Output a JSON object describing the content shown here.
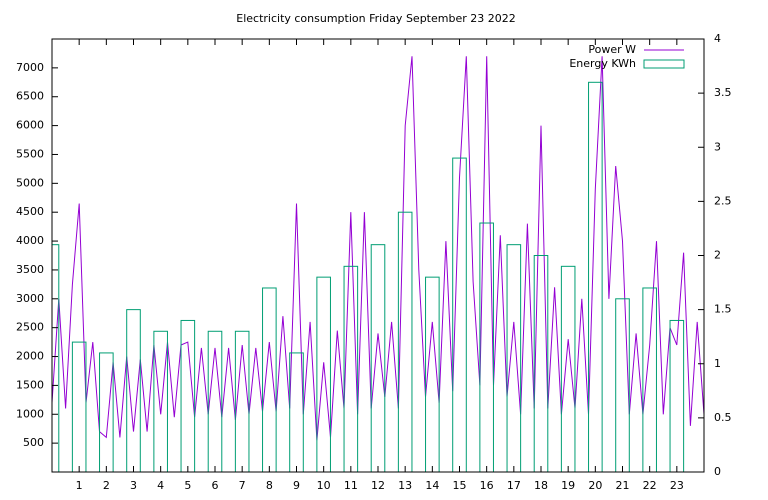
{
  "chart_data": {
    "type": "line",
    "title": "Electricity consumption Friday September 23 2022",
    "xlim": [
      0,
      24
    ],
    "xticks": [
      1,
      2,
      3,
      4,
      5,
      6,
      7,
      8,
      9,
      10,
      11,
      12,
      13,
      14,
      15,
      16,
      17,
      18,
      19,
      20,
      21,
      22,
      23
    ],
    "ylim": [
      0,
      7500
    ],
    "yticks": [
      500,
      1000,
      1500,
      2000,
      2500,
      3000,
      3500,
      4000,
      4500,
      5000,
      5500,
      6000,
      6500,
      7000
    ],
    "y2lim": [
      0,
      4
    ],
    "y2ticks": [
      0,
      0.5,
      1,
      1.5,
      2,
      2.5,
      3,
      3.5,
      4
    ],
    "legend": "top right",
    "series": [
      {
        "name": "Power W",
        "color": "#9400d3",
        "style": "line",
        "x": [
          0,
          0.25,
          0.5,
          0.75,
          1,
          1.25,
          1.5,
          1.75,
          2,
          2.25,
          2.5,
          2.75,
          3,
          3.25,
          3.5,
          3.75,
          4,
          4.25,
          4.5,
          4.75,
          5,
          5.25,
          5.5,
          5.75,
          6,
          6.25,
          6.5,
          6.75,
          7,
          7.25,
          7.5,
          7.75,
          8,
          8.25,
          8.5,
          8.75,
          9,
          9.25,
          9.5,
          9.75,
          10,
          10.25,
          10.5,
          10.75,
          11,
          11.25,
          11.5,
          11.75,
          12,
          12.25,
          12.5,
          12.75,
          13,
          13.25,
          13.5,
          13.75,
          14,
          14.25,
          14.5,
          14.75,
          15,
          15.25,
          15.5,
          15.75,
          16,
          16.25,
          16.5,
          16.75,
          17,
          17.25,
          17.5,
          17.75,
          18,
          18.25,
          18.5,
          18.75,
          19,
          19.25,
          19.5,
          19.75,
          20,
          20.25,
          20.5,
          20.75,
          21,
          21.25,
          21.5,
          21.75,
          22,
          22.25,
          22.5,
          22.75,
          23,
          23.25,
          23.5,
          23.75,
          24
        ],
        "values": [
          1200,
          3000,
          1100,
          3250,
          4650,
          1200,
          2250,
          700,
          600,
          1900,
          600,
          2000,
          700,
          1950,
          700,
          2200,
          1000,
          2250,
          950,
          2200,
          2250,
          950,
          2150,
          1000,
          2150,
          950,
          2150,
          900,
          2200,
          1000,
          2150,
          1050,
          2250,
          1050,
          2700,
          1100,
          4650,
          1000,
          2600,
          550,
          1900,
          600,
          2450,
          1100,
          4500,
          1000,
          4500,
          1100,
          2400,
          1300,
          2600,
          1100,
          6000,
          7200,
          3500,
          1300,
          2600,
          1200,
          4000,
          1400,
          5100,
          7200,
          3300,
          1500,
          7200,
          1500,
          4100,
          1300,
          2600,
          1000,
          4300,
          1100,
          6000,
          1100,
          3200,
          1000,
          2300,
          1100,
          3000,
          1000,
          4900,
          7200,
          3000,
          5300,
          4000,
          1000,
          2400,
          1000,
          2200,
          4000,
          1000,
          2500,
          2200,
          3800,
          800,
          2600,
          1000
        ]
      },
      {
        "name": "Energy KWh",
        "color": "#009e73",
        "style": "boxes",
        "axis": "y2",
        "x": [
          0,
          1,
          2,
          3,
          4,
          5,
          6,
          7,
          8,
          9,
          10,
          11,
          12,
          13,
          14,
          15,
          16,
          17,
          18,
          19,
          20,
          21,
          22,
          23
        ],
        "values": [
          2.1,
          1.2,
          1.1,
          1.5,
          1.3,
          1.4,
          1.3,
          1.3,
          1.7,
          1.1,
          1.8,
          1.9,
          2.1,
          2.4,
          1.8,
          2.9,
          2.3,
          2.1,
          2.0,
          1.9,
          3.6,
          1.6,
          1.7,
          1.4
        ]
      }
    ]
  }
}
